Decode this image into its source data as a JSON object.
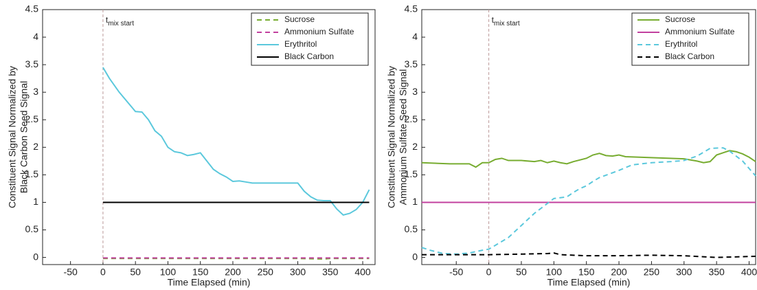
{
  "chart_data": [
    {
      "type": "line",
      "xlabel": "Time Elapsed (min)",
      "ylabel": [
        "Constituent Signal Normalized by",
        "Black Carbon Seed Signal"
      ],
      "annotation": "t",
      "annotation_sub": "mix start",
      "vline": 0,
      "xlim": [
        -93,
        419
      ],
      "ylim": [
        -0.13,
        4.5
      ],
      "xticks": [
        -50,
        0,
        50,
        100,
        150,
        200,
        250,
        300,
        350,
        400
      ],
      "yticks": [
        0,
        0.5,
        1,
        1.5,
        2,
        2.5,
        3,
        3.5,
        4,
        4.5
      ],
      "legend": "upper right",
      "series": [
        {
          "name": "Sucrose",
          "color": "#77ac30",
          "dash": true,
          "x": [
            0,
            100,
            200,
            300,
            340,
            350,
            410
          ],
          "values": [
            -0.02,
            -0.02,
            -0.02,
            -0.02,
            -0.03,
            -0.02,
            -0.02
          ]
        },
        {
          "name": "Ammonium Sulfate",
          "color": "#c2409e",
          "dash": true,
          "x": [
            0,
            100,
            200,
            300,
            410
          ],
          "values": [
            -0.01,
            -0.01,
            -0.01,
            -0.01,
            -0.01
          ]
        },
        {
          "name": "Erythritol",
          "color": "#5bc8dc",
          "dash": false,
          "x": [
            0,
            10,
            25,
            50,
            60,
            70,
            80,
            90,
            100,
            110,
            120,
            130,
            140,
            150,
            160,
            170,
            180,
            190,
            200,
            210,
            220,
            230,
            300,
            310,
            320,
            330,
            340,
            350,
            360,
            370,
            380,
            390,
            400,
            410
          ],
          "values": [
            3.45,
            3.25,
            3.0,
            2.65,
            2.64,
            2.5,
            2.3,
            2.2,
            2.0,
            1.92,
            1.9,
            1.85,
            1.87,
            1.9,
            1.75,
            1.6,
            1.52,
            1.46,
            1.38,
            1.39,
            1.37,
            1.35,
            1.35,
            1.2,
            1.1,
            1.04,
            1.03,
            1.03,
            0.88,
            0.77,
            0.8,
            0.87,
            1.0,
            1.23
          ]
        },
        {
          "name": "Black Carbon",
          "color": "#000000",
          "dash": false,
          "x": [
            0,
            410
          ],
          "values": [
            1,
            1
          ]
        }
      ]
    },
    {
      "type": "line",
      "xlabel": "Time Elapsed (min)",
      "ylabel": [
        "Constituent Signal Normalized by",
        "Ammonium Sulfate Seed Signal"
      ],
      "annotation": "t",
      "annotation_sub": "mix start",
      "vline": 0,
      "xlim": [
        -103,
        410
      ],
      "ylim": [
        -0.13,
        4.5
      ],
      "xticks": [
        -50,
        0,
        50,
        100,
        150,
        200,
        250,
        300,
        350,
        400
      ],
      "yticks": [
        0,
        0.5,
        1,
        1.5,
        2,
        2.5,
        3,
        3.5,
        4,
        4.5
      ],
      "legend": "upper right",
      "series": [
        {
          "name": "Sucrose",
          "color": "#77ac30",
          "dash": false,
          "x": [
            -103,
            -60,
            -30,
            -20,
            -10,
            0,
            10,
            20,
            30,
            50,
            70,
            80,
            90,
            100,
            110,
            120,
            130,
            150,
            160,
            170,
            180,
            190,
            200,
            210,
            300,
            320,
            330,
            340,
            350,
            360,
            370,
            380,
            390,
            400,
            410
          ],
          "values": [
            1.72,
            1.7,
            1.7,
            1.64,
            1.72,
            1.72,
            1.78,
            1.8,
            1.76,
            1.76,
            1.74,
            1.76,
            1.72,
            1.75,
            1.72,
            1.7,
            1.74,
            1.8,
            1.86,
            1.89,
            1.85,
            1.84,
            1.86,
            1.83,
            1.79,
            1.75,
            1.72,
            1.74,
            1.86,
            1.9,
            1.94,
            1.92,
            1.88,
            1.82,
            1.74
          ]
        },
        {
          "name": "Ammonium Sulfate",
          "color": "#c2409e",
          "dash": false,
          "x": [
            -103,
            410
          ],
          "values": [
            1,
            1
          ]
        },
        {
          "name": "Erythritol",
          "color": "#5bc8dc",
          "dash": true,
          "x": [
            -103,
            -90,
            -70,
            -50,
            -30,
            -10,
            0,
            10,
            30,
            50,
            70,
            90,
            100,
            120,
            130,
            140,
            150,
            160,
            170,
            200,
            220,
            250,
            280,
            300,
            320,
            340,
            360,
            370,
            390,
            410
          ],
          "values": [
            0.18,
            0.13,
            0.07,
            0.06,
            0.08,
            0.13,
            0.15,
            0.22,
            0.36,
            0.58,
            0.8,
            0.98,
            1.07,
            1.1,
            1.18,
            1.25,
            1.3,
            1.38,
            1.45,
            1.58,
            1.68,
            1.72,
            1.74,
            1.76,
            1.84,
            1.98,
            1.99,
            1.93,
            1.75,
            1.48
          ]
        },
        {
          "name": "Black Carbon",
          "color": "#000000",
          "dash": true,
          "x": [
            -103,
            0,
            50,
            90,
            100,
            110,
            150,
            200,
            250,
            300,
            350,
            410
          ],
          "values": [
            0.05,
            0.05,
            0.06,
            0.07,
            0.08,
            0.05,
            0.03,
            0.03,
            0.04,
            0.03,
            0.0,
            0.02
          ]
        }
      ]
    }
  ]
}
